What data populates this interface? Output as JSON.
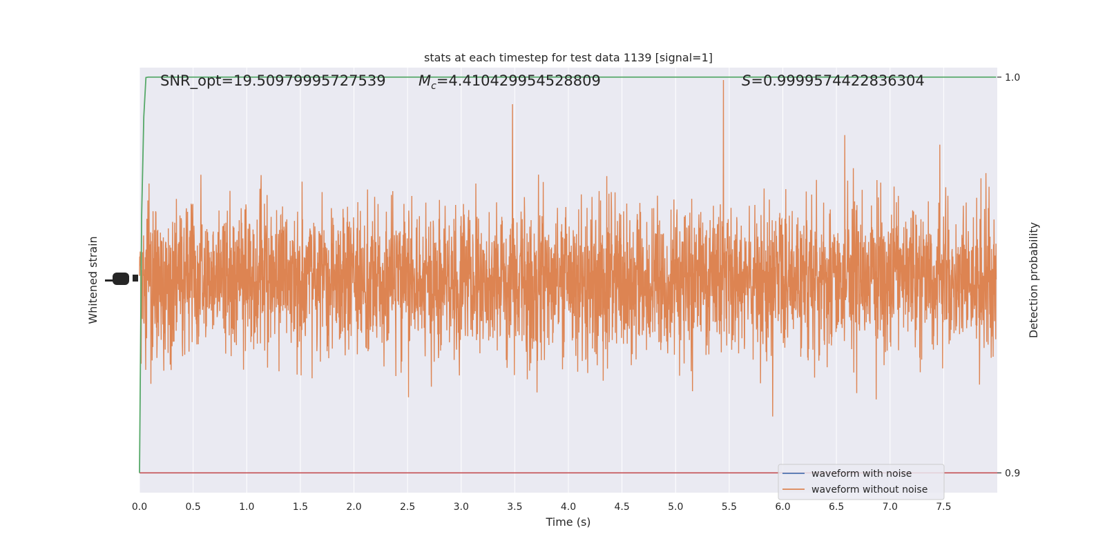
{
  "chart_data": {
    "type": "line",
    "title": "stats at each timestep for test data 1139 [signal=1]",
    "xlabel": "Time (s)",
    "ylabel_left": "Whitened strain",
    "ylabel_right": "Detection probability",
    "xlim": [
      0.0,
      8.0
    ],
    "x_ticks": [
      0.0,
      0.5,
      1.0,
      1.5,
      2.0,
      2.5,
      3.0,
      3.5,
      4.0,
      4.5,
      5.0,
      5.5,
      6.0,
      6.5,
      7.0,
      7.5
    ],
    "x_tick_labels": [
      "0.0",
      "0.5",
      "1.0",
      "1.5",
      "2.0",
      "2.5",
      "3.0",
      "3.5",
      "4.0",
      "4.5",
      "5.0",
      "5.5",
      "6.0",
      "6.5",
      "7.0",
      "7.5"
    ],
    "right_ylim": [
      0.895,
      1.0024
    ],
    "right_ticks": [
      0.9,
      1.0
    ],
    "right_tick_labels": [
      "0.9",
      "1.0"
    ],
    "grid": true,
    "legend_placement": "lower-right",
    "annotations": {
      "snr": "SNR_opt=19.50979995727539",
      "mc_symbol": "M",
      "mc_sub": "c",
      "mc_value": "=4.410429954528809",
      "s_symbol": "S",
      "s_value": "=0.9999574422836304"
    },
    "series": [
      {
        "name": "waveform with noise",
        "color": "#4c72b0"
      },
      {
        "name": "waveform without noise",
        "color": "#dd8452",
        "amplitude_envelope": [
          -1.0,
          1.0
        ]
      }
    ],
    "detection_probability": {
      "color": "#55a868",
      "x": [
        0.0,
        0.02,
        0.04,
        0.06,
        0.08,
        7.99
      ],
      "y": [
        0.9,
        0.965,
        0.99,
        0.9999,
        1.0,
        1.0
      ]
    },
    "threshold": {
      "y": 0.9,
      "color": "#c44e52"
    },
    "colors": {
      "plot_bg": "#eaeaf2",
      "grid": "#ffffff",
      "text": "#262626"
    }
  }
}
